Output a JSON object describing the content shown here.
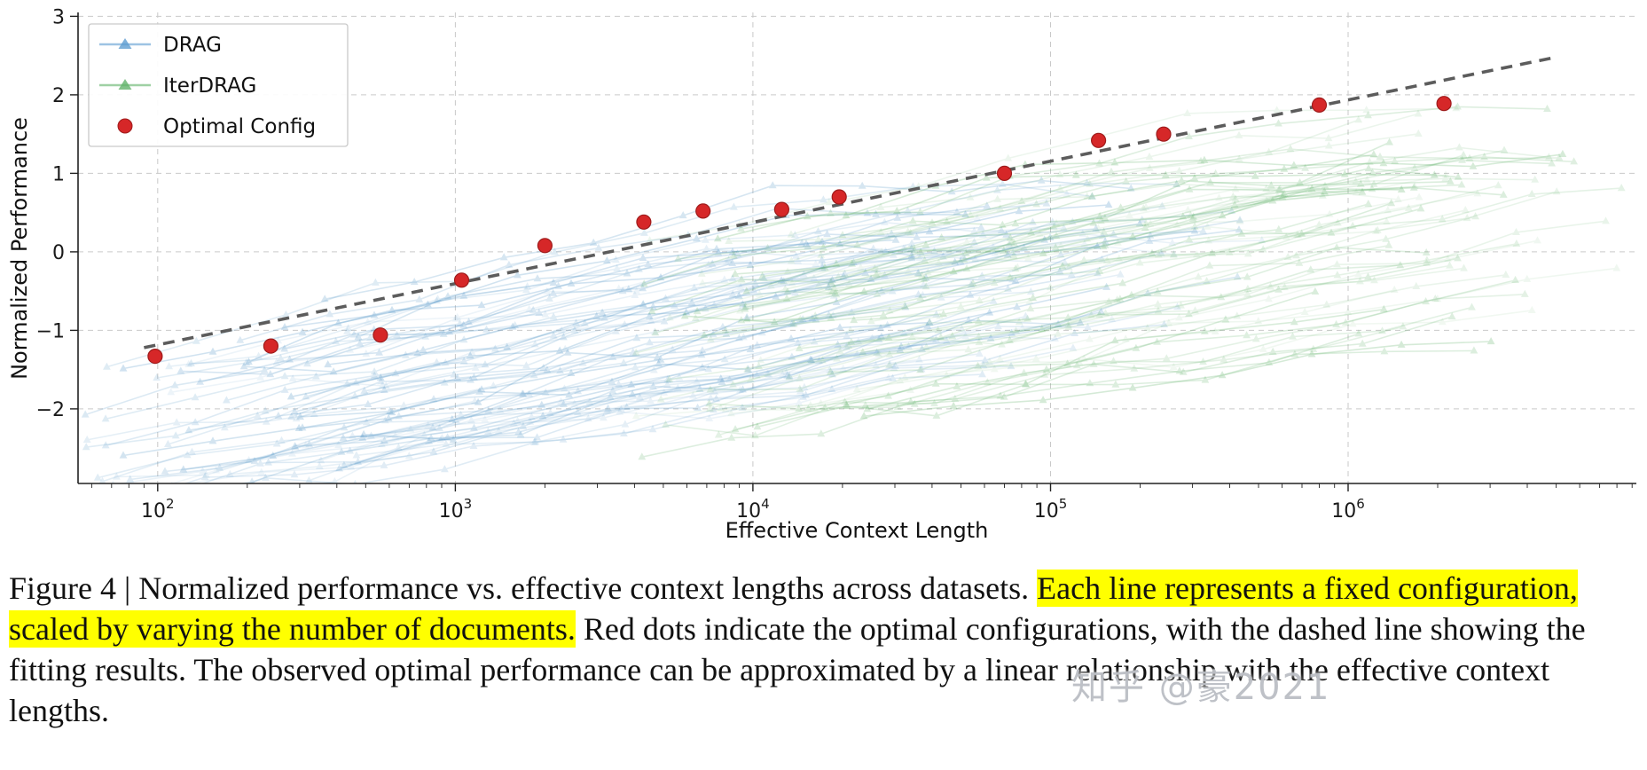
{
  "figure": {
    "caption": {
      "prefix": "Figure 4 | Normalized performance vs. effective context lengths across datasets. ",
      "highlight": "Each line represents a fixed configuration, scaled by varying the number of documents.",
      "suffix": " Red dots indicate the optimal configurations, with the dashed line showing the fitting results. The observed optimal performance can be approximated by a linear relationship with the effective context lengths."
    },
    "watermark": "知乎 @豪2021"
  },
  "chart_data": {
    "type": "line",
    "title": "",
    "xlabel": "Effective Context Length",
    "ylabel": "Normalized Performance",
    "x_scale": "log",
    "xlim": [
      54,
      9300000
    ],
    "ylim": [
      -2.95,
      3.05
    ],
    "x_ticks": [
      {
        "value": 100,
        "label_base": "10",
        "label_exp": "2"
      },
      {
        "value": 1000,
        "label_base": "10",
        "label_exp": "3"
      },
      {
        "value": 10000,
        "label_base": "10",
        "label_exp": "4"
      },
      {
        "value": 100000,
        "label_base": "10",
        "label_exp": "5"
      },
      {
        "value": 1000000,
        "label_base": "10",
        "label_exp": "6"
      }
    ],
    "y_ticks": [
      {
        "value": -2,
        "label": "−2"
      },
      {
        "value": -1,
        "label": "−1"
      },
      {
        "value": 0,
        "label": "0"
      },
      {
        "value": 1,
        "label": "1"
      },
      {
        "value": 2,
        "label": "2"
      },
      {
        "value": 3,
        "label": "3"
      }
    ],
    "grid": {
      "show": true,
      "color": "#c9c9c9",
      "style": "dashed"
    },
    "legend": {
      "position": "upper-left",
      "entries": [
        {
          "label": "DRAG",
          "marker": "triangle-line",
          "color": "#5b9bd0"
        },
        {
          "label": "IterDRAG",
          "marker": "triangle-line",
          "color": "#5fb268"
        },
        {
          "label": "Optimal Config",
          "marker": "dot",
          "color": "#d62728"
        }
      ]
    },
    "optimal_config_points": {
      "color": "#d62728",
      "edge_color": "#9e1c1c",
      "points": [
        [
          98,
          -1.33
        ],
        [
          240,
          -1.2
        ],
        [
          560,
          -1.06
        ],
        [
          1050,
          -0.36
        ],
        [
          2000,
          0.08
        ],
        [
          4300,
          0.38
        ],
        [
          6800,
          0.52
        ],
        [
          12500,
          0.54
        ],
        [
          19500,
          0.7
        ],
        [
          70000,
          1.0
        ],
        [
          145000,
          1.42
        ],
        [
          240000,
          1.5
        ],
        [
          800000,
          1.87
        ],
        [
          2100000,
          1.89
        ]
      ]
    },
    "fit_line": {
      "style": "dashed",
      "color": "#5c5c5c",
      "x": [
        90,
        5000000
      ],
      "y": [
        -1.22,
        2.48
      ]
    },
    "background_series": {
      "note": "Each faint line is one fixed retrieval configuration scaled by varying the number of documents",
      "ensembles": [
        {
          "name": "DRAG",
          "count": 65,
          "color": "#4e93c6",
          "opacity": 0.14,
          "seed": 11,
          "x0log": [
            1.74,
            2.7
          ],
          "endlog": [
            4.4,
            5.8
          ],
          "reflog": 2,
          "base": [
            -3.3,
            -1.15
          ],
          "slope": [
            0.55,
            0.95
          ],
          "cap": [
            -0.1,
            0.95
          ],
          "step": 0.301,
          "noise": 0.13
        },
        {
          "name": "IterDRAG",
          "count": 62,
          "color": "#57ad60",
          "opacity": 0.13,
          "seed": 77,
          "x0log": [
            3.6,
            4.4
          ],
          "endlog": [
            6.1,
            6.97
          ],
          "reflog": 4,
          "base": [
            -2.4,
            0.5
          ],
          "slope": [
            0.45,
            0.9
          ],
          "cap": [
            0.6,
            1.95
          ],
          "step": 0.301,
          "noise": 0.13
        }
      ]
    }
  }
}
